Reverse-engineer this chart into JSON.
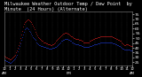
{
  "title": "Milwaukee Weather Outdoor Temp / Dew Point  by Minute  (24 Hours) (Alternate)",
  "title_fontsize": 3.8,
  "bg_color": "#000000",
  "plot_bg_color": "#000000",
  "grid_color": "#444444",
  "line_color_temp": "#ff2222",
  "line_color_dew": "#2244ff",
  "ylim": [
    22,
    78
  ],
  "yticks": [
    25,
    30,
    35,
    40,
    45,
    50,
    55,
    60,
    65,
    70,
    75
  ],
  "ytick_fontsize": 3.2,
  "xtick_fontsize": 2.8,
  "temp_data": [
    32,
    31,
    30,
    30,
    29,
    29,
    28,
    28,
    29,
    30,
    31,
    32,
    33,
    35,
    37,
    40,
    43,
    46,
    50,
    54,
    58,
    62,
    65,
    67,
    68,
    69,
    70,
    70,
    69,
    68,
    67,
    65,
    63,
    61,
    59,
    57,
    55,
    53,
    51,
    50,
    49,
    48,
    47,
    47,
    46,
    46,
    46,
    45,
    45,
    44,
    44,
    44,
    43,
    43,
    44,
    44,
    45,
    46,
    47,
    48,
    49,
    50,
    51,
    52,
    53,
    54,
    55,
    55,
    56,
    56,
    56,
    55,
    55,
    54,
    53,
    52,
    52,
    51,
    50,
    50,
    49,
    49,
    49,
    49,
    48,
    48,
    48,
    47,
    47,
    46,
    46,
    46,
    46,
    46,
    46,
    46,
    47,
    47,
    48,
    48,
    49,
    49,
    50,
    50,
    50,
    51,
    51,
    51,
    52,
    52,
    52,
    52,
    52,
    52,
    52,
    52,
    52,
    52,
    52,
    52,
    52,
    52,
    51,
    51,
    50,
    50,
    49,
    49,
    48,
    48,
    47,
    47,
    46,
    45,
    44,
    43,
    43,
    44,
    44,
    44,
    43,
    43,
    42,
    42,
    42
  ],
  "dew_data": [
    27,
    27,
    26,
    26,
    25,
    25,
    24,
    24,
    25,
    26,
    27,
    28,
    29,
    31,
    33,
    36,
    39,
    42,
    45,
    48,
    51,
    54,
    57,
    59,
    60,
    61,
    60,
    59,
    58,
    57,
    55,
    53,
    51,
    50,
    49,
    48,
    46,
    45,
    44,
    43,
    43,
    42,
    42,
    42,
    41,
    41,
    41,
    40,
    40,
    40,
    39,
    39,
    39,
    39,
    40,
    40,
    40,
    41,
    41,
    42,
    43,
    44,
    45,
    46,
    47,
    47,
    48,
    48,
    49,
    49,
    49,
    49,
    48,
    48,
    47,
    47,
    46,
    46,
    45,
    45,
    44,
    44,
    44,
    44,
    43,
    43,
    43,
    42,
    42,
    41,
    41,
    41,
    41,
    41,
    41,
    41,
    42,
    42,
    42,
    43,
    43,
    44,
    44,
    44,
    44,
    45,
    45,
    45,
    46,
    46,
    46,
    46,
    46,
    46,
    46,
    46,
    46,
    46,
    46,
    46,
    46,
    46,
    45,
    45,
    45,
    44,
    44,
    43,
    43,
    42,
    42,
    41,
    40,
    39,
    39,
    38,
    38,
    38,
    38,
    38,
    38,
    38,
    37,
    37,
    37
  ],
  "xtick_labels": [
    "12",
    "1",
    "2",
    "3",
    "4",
    "5",
    "6",
    "7",
    "8",
    "9",
    "10",
    "11",
    "12",
    "1",
    "2",
    "3",
    "4",
    "5",
    "6",
    "7",
    "8",
    "9",
    "10",
    "11",
    "12"
  ],
  "xtick_sublabels": [
    "AM",
    "",
    "",
    "",
    "",
    "",
    "",
    "",
    "",
    "",
    "",
    "",
    "PM",
    "",
    "",
    "",
    "",
    "",
    "",
    "",
    "",
    "",
    "",
    "",
    "AM"
  ]
}
